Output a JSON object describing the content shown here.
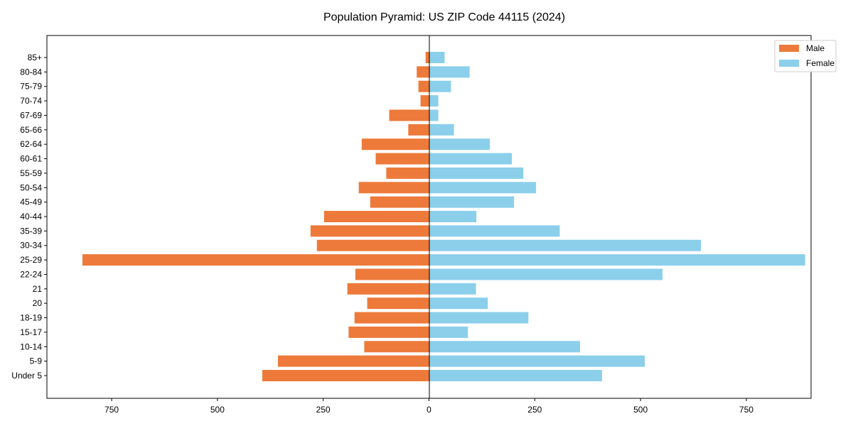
{
  "chart_data": {
    "type": "bar",
    "orientation": "horizontal",
    "title": "Population Pyramid: US ZIP Code 44115 (2024)",
    "xlabel": "",
    "ylabel": "",
    "xlim": [
      -903,
      903
    ],
    "xticks": [
      -750,
      -500,
      -250,
      0,
      250,
      500,
      750
    ],
    "xtick_labels": [
      "750",
      "500",
      "250",
      "0",
      "250",
      "500",
      "750"
    ],
    "categories": [
      "Under 5",
      "5-9",
      "10-14",
      "15-17",
      "18-19",
      "20",
      "21",
      "22-24",
      "25-29",
      "30-34",
      "35-39",
      "40-44",
      "45-49",
      "50-54",
      "55-59",
      "60-61",
      "62-64",
      "65-66",
      "67-69",
      "70-74",
      "75-79",
      "80-84",
      "85+"
    ],
    "series": [
      {
        "name": "Male",
        "color": "#ED7A3A",
        "values": [
          394,
          357,
          153,
          190,
          176,
          146,
          193,
          174,
          819,
          265,
          280,
          248,
          139,
          166,
          101,
          126,
          159,
          49,
          94,
          20,
          25,
          29,
          8
        ]
      },
      {
        "name": "Female",
        "color": "#8BCFEB",
        "values": [
          409,
          510,
          357,
          92,
          235,
          139,
          111,
          552,
          889,
          643,
          309,
          112,
          201,
          253,
          223,
          196,
          144,
          59,
          22,
          22,
          52,
          96,
          37
        ]
      }
    ],
    "legend": {
      "placement": "top-right",
      "entries": [
        "Male",
        "Female"
      ]
    },
    "grid": false
  }
}
